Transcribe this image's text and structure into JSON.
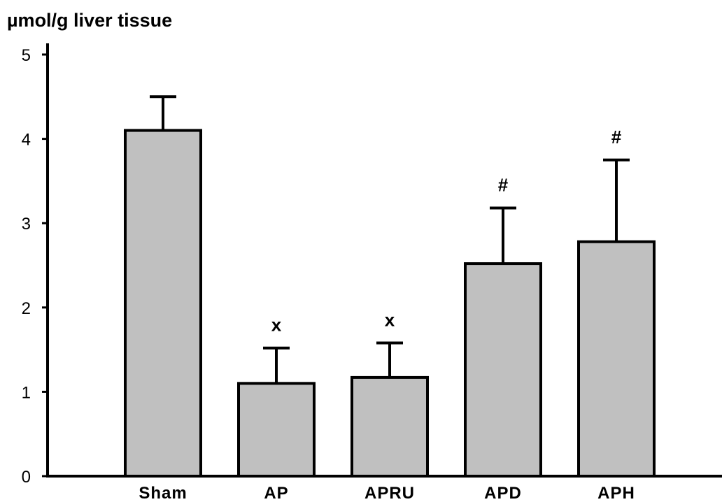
{
  "chart_data": {
    "type": "bar",
    "ylabel": "µmol/g liver tissue",
    "xlabel": "",
    "title": "",
    "categories": [
      "Sham",
      "AP",
      "APRU",
      "APD",
      "APH"
    ],
    "values": [
      4.1,
      1.1,
      1.17,
      2.52,
      2.78
    ],
    "errors": [
      0.4,
      0.42,
      0.41,
      0.66,
      0.97
    ],
    "annotations": [
      "",
      "x",
      "x",
      "#",
      "#"
    ],
    "ylim": [
      0,
      5
    ],
    "yticks": [
      "0",
      "1",
      "2",
      "3",
      "4",
      "5"
    ],
    "bar_color": "#c0c0c0",
    "edge_color": "#000000",
    "grid": false,
    "legend": "none"
  }
}
